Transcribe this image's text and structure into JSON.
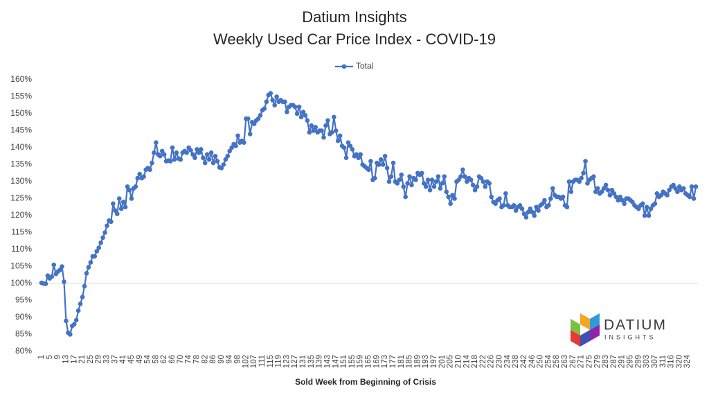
{
  "chart_data": {
    "type": "line",
    "title": "Datium Insights",
    "subtitle": "Weekly Used Car Price Index - COVID-19",
    "x_label": "Sold Week from Beginning of Crisis",
    "categories": [
      "1",
      null,
      null,
      null,
      "5",
      null,
      null,
      null,
      "9",
      null,
      null,
      null,
      "13",
      null,
      null,
      null,
      "17",
      null,
      null,
      null,
      "21",
      null,
      null,
      null,
      "25",
      null,
      null,
      null,
      "29",
      null,
      null,
      null,
      "33",
      null,
      null,
      null,
      "37",
      null,
      null,
      null,
      "41",
      null,
      null,
      null,
      "45",
      null,
      null,
      null,
      "49",
      null,
      null,
      null,
      "54",
      null,
      null,
      null,
      "58",
      null,
      null,
      null,
      "62",
      null,
      null,
      null,
      "66",
      null,
      null,
      null,
      "70",
      null,
      null,
      null,
      "74",
      null,
      null,
      null,
      "78",
      null,
      null,
      null,
      "82",
      null,
      null,
      null,
      "86",
      null,
      null,
      null,
      "90",
      null,
      null,
      null,
      "94",
      null,
      null,
      null,
      "98",
      null,
      null,
      null,
      "102",
      null,
      null,
      null,
      "107",
      null,
      null,
      null,
      "111",
      null,
      null,
      null,
      "115",
      null,
      null,
      null,
      "119",
      null,
      null,
      null,
      "123",
      null,
      null,
      null,
      "127",
      null,
      null,
      null,
      "131",
      null,
      null,
      null,
      "135",
      null,
      null,
      null,
      "139",
      null,
      null,
      null,
      "143",
      null,
      null,
      null,
      "147",
      null,
      null,
      null,
      "151",
      null,
      null,
      null,
      "155",
      null,
      null,
      null,
      "159",
      null,
      null,
      null,
      "165",
      null,
      null,
      null,
      "169",
      null,
      null,
      null,
      "173",
      null,
      null,
      null,
      "177",
      null,
      null,
      null,
      "181",
      null,
      null,
      null,
      "185",
      null,
      null,
      null,
      "189",
      null,
      null,
      null,
      "193",
      null,
      null,
      null,
      "197",
      null,
      null,
      null,
      "201",
      null,
      null,
      null,
      "205",
      null,
      null,
      null,
      "210",
      null,
      null,
      null,
      "214",
      null,
      null,
      null,
      "218",
      null,
      null,
      null,
      "222",
      null,
      null,
      null,
      "226",
      null,
      null,
      null,
      "230",
      null,
      null,
      null,
      "234",
      null,
      null,
      null,
      "238",
      null,
      null,
      null,
      "242",
      null,
      null,
      null,
      "246",
      null,
      null,
      null,
      "250",
      null,
      null,
      null,
      "254",
      null,
      null,
      null,
      "258",
      null,
      null,
      null,
      "263",
      null,
      null,
      null,
      "267",
      null,
      null,
      null,
      "271",
      null,
      null,
      null,
      "275",
      null,
      null,
      null,
      "279",
      null,
      null,
      null,
      "283",
      null,
      null,
      null,
      "287",
      null,
      null,
      null,
      "291",
      null,
      null,
      null,
      "295",
      null,
      null,
      null,
      "299",
      null,
      null,
      null,
      "303",
      null,
      null,
      null,
      "307",
      null,
      null,
      null,
      "311",
      null,
      null,
      null,
      "316",
      null,
      null,
      null,
      "320",
      null,
      null,
      null,
      "324",
      null,
      null,
      null,
      null
    ],
    "series": [
      {
        "name": "Total",
        "color": "#4472c4",
        "values": [
          100.2,
          100.0,
          99.9,
          102.3,
          101.5,
          102.0,
          105.5,
          102.8,
          103.5,
          104.0,
          105.0,
          100.5,
          89.0,
          85.5,
          85.0,
          87.5,
          88.0,
          89.2,
          92.0,
          94.0,
          96.0,
          99.2,
          103.0,
          104.8,
          106.2,
          108.0,
          108.0,
          109.5,
          110.5,
          112.0,
          113.5,
          115.0,
          117.0,
          118.5,
          118.2,
          123.5,
          121.5,
          120.5,
          125.0,
          122.0,
          124.0,
          122.5,
          128.5,
          127.5,
          125.0,
          128.0,
          128.5,
          131.0,
          132.2,
          131.0,
          131.5,
          133.5,
          134.0,
          133.5,
          135.5,
          138.5,
          141.5,
          138.0,
          137.5,
          139.0,
          138.0,
          136.0,
          136.2,
          136.0,
          140.0,
          136.5,
          138.5,
          136.8,
          136.5,
          138.5,
          139.0,
          138.5,
          140.0,
          139.2,
          138.0,
          137.0,
          139.5,
          138.5,
          139.5,
          137.0,
          135.5,
          138.0,
          136.5,
          138.5,
          135.5,
          137.5,
          136.0,
          134.2,
          134.0,
          135.0,
          136.5,
          137.5,
          139.0,
          140.0,
          141.0,
          140.5,
          143.5,
          141.5,
          142.0,
          141.5,
          148.5,
          148.5,
          144.0,
          147.5,
          147.0,
          148.0,
          148.5,
          149.5,
          151.0,
          151.5,
          153.5,
          155.5,
          156.0,
          154.0,
          152.5,
          155.0,
          153.5,
          154.0,
          153.5,
          153.5,
          150.5,
          152.0,
          152.5,
          152.5,
          152.0,
          150.0,
          152.0,
          149.0,
          150.5,
          149.5,
          148.0,
          144.5,
          146.5,
          145.0,
          146.0,
          144.5,
          145.0,
          145.0,
          143.0,
          146.5,
          148.0,
          144.0,
          144.5,
          149.0,
          145.0,
          142.0,
          143.5,
          140.5,
          140.0,
          137.0,
          141.5,
          140.5,
          139.5,
          137.5,
          138.0,
          137.0,
          138.0,
          135.0,
          134.5,
          134.0,
          133.5,
          136.0,
          130.5,
          131.0,
          135.5,
          135.0,
          136.5,
          135.0,
          137.5,
          134.0,
          130.0,
          131.5,
          135.5,
          130.0,
          129.5,
          130.5,
          132.0,
          128.5,
          125.5,
          129.5,
          131.5,
          129.0,
          131.0,
          130.5,
          132.5,
          132.0,
          132.5,
          129.5,
          128.5,
          130.5,
          127.5,
          130.5,
          128.5,
          130.0,
          131.5,
          128.0,
          129.5,
          131.5,
          127.0,
          125.5,
          123.5,
          126.0,
          125.0,
          130.0,
          130.5,
          131.5,
          133.5,
          131.5,
          130.0,
          131.0,
          130.5,
          129.0,
          127.5,
          128.5,
          131.5,
          131.0,
          130.0,
          128.5,
          130.0,
          129.5,
          125.5,
          124.0,
          123.5,
          124.5,
          125.0,
          122.5,
          123.0,
          126.5,
          123.0,
          122.5,
          122.5,
          123.0,
          121.5,
          122.5,
          123.0,
          122.0,
          120.5,
          119.5,
          121.0,
          122.0,
          121.0,
          120.0,
          122.5,
          121.5,
          123.0,
          123.5,
          124.5,
          122.5,
          123.0,
          125.0,
          128.0,
          126.0,
          125.5,
          125.5,
          125.0,
          125.5,
          123.0,
          122.5,
          130.0,
          127.0,
          130.0,
          130.5,
          130.5,
          130.0,
          131.0,
          132.5,
          136.0,
          129.5,
          130.5,
          131.0,
          131.5,
          127.0,
          128.0,
          126.5,
          127.0,
          128.0,
          129.0,
          127.5,
          126.0,
          127.5,
          126.5,
          125.5,
          124.5,
          125.5,
          124.5,
          123.5,
          125.0,
          125.0,
          124.5,
          124.0,
          123.0,
          122.5,
          122.0,
          123.0,
          123.5,
          120.0,
          122.5,
          120.0,
          122.0,
          123.0,
          123.5,
          126.5,
          125.5,
          126.0,
          127.0,
          126.5,
          126.0,
          127.5,
          128.5,
          129.0,
          128.0,
          127.0,
          128.5,
          127.5,
          128.0,
          126.5,
          126.0,
          125.5,
          128.5,
          125.0,
          128.5
        ]
      }
    ],
    "ylim": [
      80,
      160
    ],
    "yticks": [
      {
        "value": 80,
        "label": "80%"
      },
      {
        "value": 85,
        "label": "85%"
      },
      {
        "value": 90,
        "label": "90%"
      },
      {
        "value": 95,
        "label": "95%"
      },
      {
        "value": 100,
        "label": "100%"
      },
      {
        "value": 105,
        "label": "105%"
      },
      {
        "value": 110,
        "label": "110%"
      },
      {
        "value": 115,
        "label": "115%"
      },
      {
        "value": 120,
        "label": "120%"
      },
      {
        "value": 125,
        "label": "125%"
      },
      {
        "value": 130,
        "label": "130%"
      },
      {
        "value": 135,
        "label": "135%"
      },
      {
        "value": 140,
        "label": "140%"
      },
      {
        "value": 145,
        "label": "145%"
      },
      {
        "value": 150,
        "label": "150%"
      },
      {
        "value": 155,
        "label": "155%"
      },
      {
        "value": 160,
        "label": "160%"
      }
    ],
    "x_axis_crossing": 100,
    "grid": false,
    "legend": "top"
  },
  "logo": {
    "name": "DATIUM",
    "tagline": "INSIGHTS"
  }
}
